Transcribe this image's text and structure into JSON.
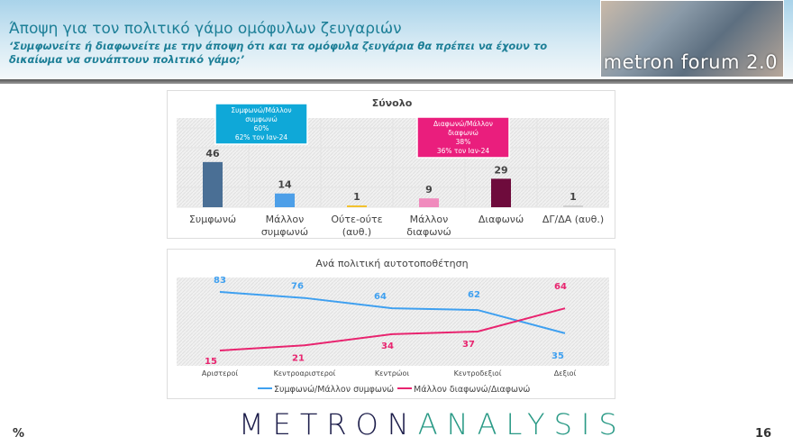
{
  "header": {
    "title": "Άποψη για τον πολιτικό γάμο ομόφυλων ζευγαριών",
    "subtitle": "‘Συμφωνείτε ή διαφωνείτε με την άποψη ότι και τα ομόφυλα ζευγάρια θα πρέπει να έχουν το δικαίωμα να συνάπτουν πολιτικό γάμο;’",
    "logo": "metron forum 2.0"
  },
  "chart_data": [
    {
      "type": "bar",
      "title": "Σύνολο",
      "categories": [
        "Συμφωνώ",
        "Μάλλον συμφωνώ",
        "Ούτε-ούτε (αυθ.)",
        "Μάλλον διαφωνώ",
        "Διαφωνώ",
        "ΔΓ/ΔΑ (αυθ.)"
      ],
      "values": [
        46,
        14,
        1,
        9,
        29,
        1
      ],
      "colors": [
        "#4a6f95",
        "#4d9fe8",
        "#f2c12e",
        "#f08bbd",
        "#6e0b3c",
        "#cfcfcf"
      ],
      "ylim": [
        0,
        100
      ],
      "grid": true,
      "annotations": [
        {
          "lines": [
            "Συμφωνώ/Μάλλον",
            "συμφωνώ",
            "60%",
            "62% τον Ιαν-24"
          ],
          "color": "#0fa8d8"
        },
        {
          "lines": [
            "Διαφωνώ/Μάλλον",
            "διαφωνώ",
            "38%",
            "36% τον Ιαν-24"
          ],
          "color": "#ea1e7d"
        }
      ]
    },
    {
      "type": "line",
      "title": "Ανά πολιτική αυτοτοποθέτηση",
      "categories": [
        "Αριστεροί",
        "Κεντροαριστεροί",
        "Κεντρώοι",
        "Κεντροδεξιοί",
        "Δεξιοί"
      ],
      "legend": "bottom",
      "grid": true,
      "series": [
        {
          "name": "Συμφωνώ/Μάλλον συμφωνώ",
          "values": [
            83,
            76,
            64,
            62,
            35
          ],
          "color": "#3fa0f0"
        },
        {
          "name": "Μάλλον διαφωνώ/Διαφωνώ",
          "values": [
            15,
            21,
            34,
            37,
            64
          ],
          "color": "#e8246f"
        }
      ]
    }
  ],
  "footer": {
    "logo_a": "METRON",
    "logo_b": "ANALYSIS",
    "unit": "%",
    "page": "16"
  }
}
